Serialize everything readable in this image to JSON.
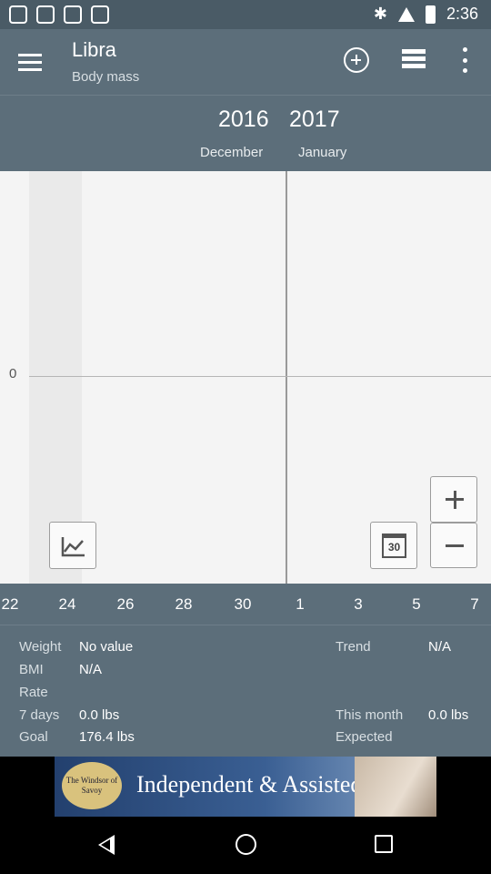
{
  "status_bar": {
    "time": "2:36",
    "icons": [
      "notification-icon",
      "notification-icon",
      "notification-icon",
      "notification-icon",
      "bluetooth-icon",
      "signal-icon",
      "battery-icon"
    ]
  },
  "app_bar": {
    "title": "Libra",
    "subtitle": "Body mass",
    "actions": [
      "menu-icon",
      "add-icon",
      "list-icon",
      "more-icon"
    ]
  },
  "date_header": {
    "year_left": "2016",
    "year_right": "2017",
    "month_left": "December",
    "month_right": "January"
  },
  "chart": {
    "y_label": "0",
    "x_ticks": [
      "22",
      "24",
      "26",
      "28",
      "30",
      "1",
      "3",
      "5",
      "7"
    ],
    "calendar_label": "30"
  },
  "stats": {
    "weight_label": "Weight",
    "weight_value": "No value",
    "trend_label": "Trend",
    "trend_value": "N/A",
    "bmi_label": "BMI",
    "bmi_value": "N/A",
    "rate_label": "Rate",
    "seven_days_label": "7 days",
    "seven_days_value": "0.0 lbs",
    "this_month_label": "This month",
    "this_month_value": "0.0 lbs",
    "goal_label": "Goal",
    "goal_value": "176.4 lbs",
    "expected_label": "Expected"
  },
  "ad": {
    "logo_text": "The Windsor of Savoy",
    "headline": "Independent & Assisted Living"
  },
  "colors": {
    "primary": "#5c6e7a",
    "status_bar": "#4a5b66",
    "chart_bg": "#f4f4f4"
  }
}
